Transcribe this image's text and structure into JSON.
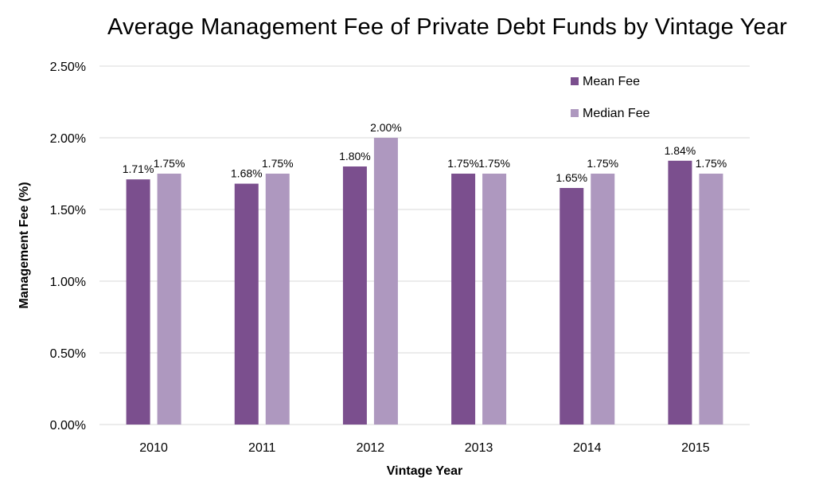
{
  "chart_data": {
    "type": "bar",
    "title": "Average Management Fee of Private Debt Funds by Vintage Year",
    "xlabel": "Vintage Year",
    "ylabel": "Management Fee (%)",
    "categories": [
      "2010",
      "2011",
      "2012",
      "2013",
      "2014",
      "2015"
    ],
    "series": [
      {
        "name": "Mean Fee",
        "color": "#7b4f8e",
        "values": [
          1.71,
          1.68,
          1.8,
          1.75,
          1.65,
          1.84
        ],
        "labels": [
          "1.71%",
          "1.68%",
          "1.80%",
          "1.75%",
          "1.65%",
          "1.84%"
        ]
      },
      {
        "name": "Median Fee",
        "color": "#ae98bf",
        "values": [
          1.75,
          1.75,
          2.0,
          1.75,
          1.75,
          1.75
        ],
        "labels": [
          "1.75%",
          "1.75%",
          "2.00%",
          "1.75%",
          "1.75%",
          "1.75%"
        ]
      }
    ],
    "ylim": [
      0,
      2.5
    ],
    "yticks": [
      "0.00%",
      "0.50%",
      "1.00%",
      "1.50%",
      "2.00%",
      "2.50%"
    ],
    "grid": true,
    "legend_position": "top-right",
    "colors": {
      "gridline": "#d9d9d9",
      "text": "#000000"
    }
  }
}
